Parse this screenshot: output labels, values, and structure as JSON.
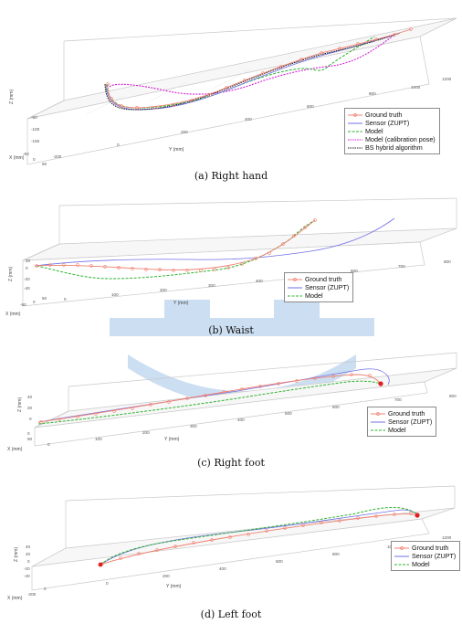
{
  "colors": {
    "ground_truth": "#f08070",
    "sensor": "#6f6fe6",
    "model": "#2fb32f",
    "model_calib": "#d21fd2",
    "bs_hybrid": "#222222",
    "watermark": "#1e6bc4"
  },
  "panels": [
    {
      "caption": "(a) Right hand",
      "legend": [
        "Ground truth",
        "Sensor (ZUPT)",
        "Model",
        "Model (calibration pose)",
        "BS hybrid algorithm"
      ],
      "axis_labels": {
        "x": "X (mm)",
        "y": "Y (mm)",
        "z": "Z (mm)"
      },
      "y_ticks": [
        "-200",
        "0",
        "200",
        "400",
        "600",
        "800",
        "1000",
        "1200"
      ],
      "x_ticks": [
        "-50",
        "0",
        "50"
      ],
      "z_ticks": [
        "-50",
        "-100",
        "-150"
      ]
    },
    {
      "caption": "(b) Waist",
      "legend": [
        "Ground truth",
        "Sensor (ZUPT)",
        "Model"
      ],
      "axis_labels": {
        "x": "X (mm)",
        "y": "Y (mm)",
        "z": "Z (mm)"
      },
      "y_ticks": [
        "0",
        "100",
        "200",
        "300",
        "400",
        "500",
        "600",
        "700",
        "800"
      ],
      "x_ticks": [
        "-50",
        "0",
        "50"
      ],
      "z_ticks": [
        "20",
        "0",
        "-20",
        "-40"
      ]
    },
    {
      "caption": "(c) Right foot",
      "legend": [
        "Ground truth",
        "Sensor (ZUPT)",
        "Model"
      ],
      "axis_labels": {
        "x": "X (mm)",
        "y": "Y (mm)",
        "z": "Z (mm)"
      },
      "y_ticks": [
        "0",
        "100",
        "200",
        "300",
        "400",
        "500",
        "600",
        "700",
        "800"
      ],
      "x_ticks": [
        "0",
        "50"
      ],
      "z_ticks": [
        "40",
        "20",
        "0"
      ]
    },
    {
      "caption": "(d) Left foot",
      "legend": [
        "Ground truth",
        "Sensor (ZUPT)",
        "Model"
      ],
      "axis_labels": {
        "x": "X (mm)",
        "y": "Y (mm)",
        "z": "Z (mm)"
      },
      "y_ticks": [
        "0",
        "200",
        "400",
        "600",
        "800",
        "1000",
        "1200"
      ],
      "x_ticks": [
        "-200",
        "0"
      ],
      "z_ticks": [
        "40",
        "20",
        "0",
        "-20",
        "-40"
      ]
    }
  ]
}
